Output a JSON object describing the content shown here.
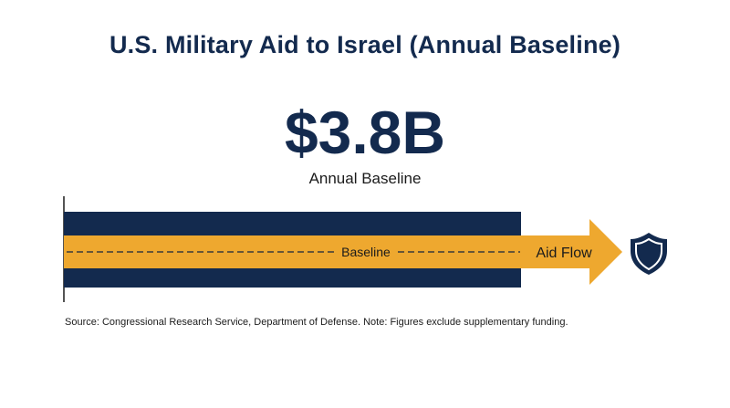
{
  "chart_data": {
    "type": "bar",
    "title": "U.S. Military Aid to Israel (Annual Baseline)",
    "headline_value": "$3.8B",
    "headline_label": "Annual Baseline",
    "categories": [
      "Annual Baseline"
    ],
    "values": [
      3.8
    ],
    "unit": "USD billions",
    "labels": {
      "baseline_line": "Baseline",
      "arrow": "Aid Flow"
    },
    "icon": "shield-icon",
    "colors": {
      "bar": "#132a4e",
      "arrow": "#eea82f",
      "text": "#132a4e",
      "dash": "#3a3a3a"
    },
    "source_note": "Source: Congressional Research Service, Department of Defense. Note: Figures exclude supplementary funding."
  }
}
